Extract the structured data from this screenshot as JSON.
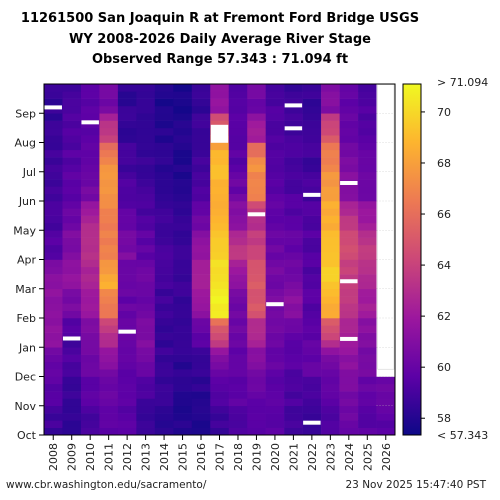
{
  "title_lines": [
    "11261500 San Joaquin R at Fremont Ford Bridge USGS",
    "WY 2008-2026 Daily Average River Stage",
    "Observed Range 57.343 : 71.094 ft"
  ],
  "footer": {
    "left": "www.cbr.washington.edu/sacramento/",
    "right": "23 Nov 2025 15:47:40 PST"
  },
  "chart_data": {
    "type": "heatmap",
    "title": "11261500 San Joaquin R at Fremont Ford Bridge USGS WY 2008-2026 Daily Average River Stage",
    "subtitle": "Observed Range 57.343 : 71.094 ft",
    "x_categories": [
      "2008",
      "2009",
      "2010",
      "2011",
      "2012",
      "2013",
      "2014",
      "2015",
      "2016",
      "2017",
      "2018",
      "2019",
      "2020",
      "2021",
      "2022",
      "2023",
      "2024",
      "2025",
      "2026"
    ],
    "y_months": [
      "Oct",
      "Nov",
      "Dec",
      "Jan",
      "Feb",
      "Mar",
      "Apr",
      "May",
      "Jun",
      "Jul",
      "Aug",
      "Sep"
    ],
    "colorbar": {
      "min": 57.343,
      "max": 71.094,
      "ticks": [
        58,
        60,
        62,
        64,
        66,
        68,
        70
      ],
      "min_label": "< 57.343",
      "max_label": "> 71.094",
      "colors": [
        "#0d0887",
        "#5c01a6",
        "#9c179e",
        "#cc4778",
        "#ed7953",
        "#fdb42f",
        "#f0f921"
      ]
    },
    "monthly_stage_ft": {
      "2008": [
        58.8,
        59.2,
        60.0,
        61.3,
        61.2,
        61.5,
        59.6,
        59.1,
        58.8,
        58.7,
        58.6,
        58.5
      ],
      "2009": [
        58.5,
        58.6,
        59.4,
        59.0,
        60.4,
        61.8,
        60.9,
        60.3,
        59.7,
        59.4,
        59.3,
        59.0
      ],
      "2010": [
        58.8,
        59.4,
        60.2,
        60.6,
        61.6,
        62.6,
        63.2,
        62.7,
        60.5,
        59.9,
        59.6,
        59.4
      ],
      "2011": [
        59.5,
        60.0,
        60.7,
        62.6,
        66.2,
        68.4,
        66.6,
        66.8,
        67.6,
        67.4,
        64.0,
        60.5
      ],
      "2012": [
        59.5,
        59.6,
        59.7,
        59.8,
        60.0,
        59.9,
        60.8,
        59.9,
        59.2,
        58.8,
        58.5,
        58.4
      ],
      "2013": [
        58.5,
        58.8,
        60.0,
        60.9,
        60.3,
        60.1,
        59.8,
        59.3,
        58.8,
        58.5,
        58.4,
        58.3
      ],
      "2014": [
        58.3,
        58.4,
        58.6,
        58.6,
        58.8,
        58.9,
        59.0,
        58.7,
        58.4,
        58.2,
        58.0,
        57.9
      ],
      "2015": [
        57.9,
        58.0,
        58.2,
        58.3,
        58.5,
        58.6,
        58.7,
        58.4,
        58.1,
        58.0,
        57.9,
        57.9
      ],
      "2016": [
        58.0,
        58.1,
        58.3,
        59.5,
        61.4,
        62.6,
        61.8,
        60.5,
        59.4,
        58.8,
        58.6,
        58.4
      ],
      "2017": [
        58.6,
        59.4,
        60.4,
        63.4,
        70.9,
        70.2,
        69.6,
        68.7,
        68.9,
        69.3,
        66.5,
        61.6
      ],
      "2018": [
        59.3,
        59.6,
        59.9,
        60.2,
        60.3,
        61.3,
        63.6,
        61.6,
        60.2,
        59.6,
        59.4,
        59.2
      ],
      "2019": [
        59.4,
        59.8,
        60.6,
        62.2,
        64.8,
        65.4,
        64.1,
        63.0,
        66.5,
        67.6,
        62.3,
        60.3
      ],
      "2020": [
        59.4,
        59.7,
        59.9,
        60.3,
        60.6,
        60.5,
        60.2,
        59.9,
        59.6,
        59.4,
        59.3,
        59.2
      ],
      "2021": [
        59.0,
        59.1,
        59.4,
        59.6,
        61.5,
        60.5,
        60.0,
        59.6,
        59.3,
        59.0,
        58.8,
        58.7
      ],
      "2022": [
        58.6,
        58.8,
        59.8,
        59.7,
        59.5,
        59.4,
        59.4,
        59.2,
        59.0,
        58.8,
        58.6,
        58.5
      ],
      "2023": [
        59.2,
        59.5,
        60.2,
        63.3,
        68.4,
        69.6,
        69.3,
        68.6,
        67.9,
        67.2,
        64.9,
        60.9
      ],
      "2024": [
        60.0,
        60.4,
        61.2,
        62.2,
        63.4,
        63.6,
        64.6,
        63.5,
        61.4,
        60.6,
        60.2,
        59.8
      ],
      "2025": [
        59.6,
        60.0,
        60.4,
        61.0,
        62.0,
        62.9,
        63.6,
        62.0,
        60.4,
        59.9,
        59.6,
        59.3
      ],
      "2026": [
        59.5,
        60.3,
        null,
        null,
        null,
        null,
        null,
        null,
        null,
        null,
        null,
        null
      ]
    },
    "missing_segments": [
      {
        "wy": "2008",
        "date": "Sep"
      },
      {
        "wy": "2009",
        "date": "Jan"
      },
      {
        "wy": "2010",
        "date": "Aug"
      },
      {
        "wy": "2012",
        "date": "Jan"
      },
      {
        "wy": "2017",
        "date": "Aug"
      },
      {
        "wy": "2019",
        "date": "May"
      },
      {
        "wy": "2020",
        "date": "Feb"
      },
      {
        "wy": "2021",
        "date": "Sep"
      },
      {
        "wy": "2021",
        "date": "Aug"
      },
      {
        "wy": "2022",
        "date": "Jun"
      },
      {
        "wy": "2022",
        "date": "Oct"
      },
      {
        "wy": "2024",
        "date": "Jun"
      },
      {
        "wy": "2024",
        "date": "Mar"
      },
      {
        "wy": "2024",
        "date": "Jan"
      },
      {
        "wy": "2026",
        "date": "Dec-Sep"
      }
    ]
  }
}
